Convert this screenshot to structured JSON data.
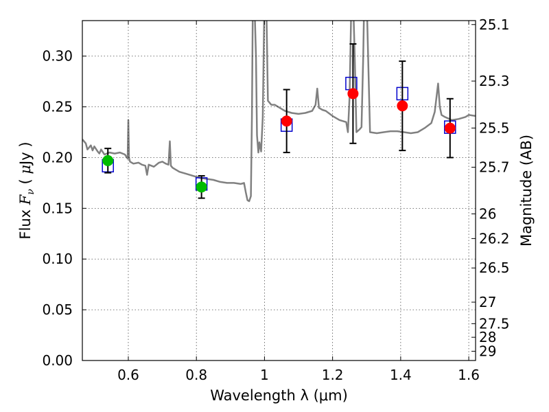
{
  "chart_data": {
    "type": "scatter",
    "title": "",
    "xlabel": "Wavelength  λ (μm)",
    "ylabel": "Flux  F_ν  ( μJy )",
    "ylabel_right": "Magnitude (AB)",
    "xlim": [
      0.465,
      1.62
    ],
    "ylim": [
      0.0,
      0.335
    ],
    "grid": true,
    "x_ticks": [
      0.6,
      0.8,
      1.0,
      1.2,
      1.4,
      1.6
    ],
    "x_tick_labels": [
      "0.6",
      "0.8",
      "1",
      "1.2",
      "1.4",
      "1.6"
    ],
    "y_ticks": [
      0.0,
      0.05,
      0.1,
      0.15,
      0.2,
      0.25,
      0.3
    ],
    "y_tick_labels": [
      "0.00",
      "0.05",
      "0.10",
      "0.15",
      "0.20",
      "0.25",
      "0.30"
    ],
    "right_axis_ticks": [
      {
        "label": "25.1",
        "flux": 0.3311
      },
      {
        "label": "25.3",
        "flux": 0.2754
      },
      {
        "label": "25.5",
        "flux": 0.2291
      },
      {
        "label": "25.7",
        "flux": 0.1905
      },
      {
        "label": "26",
        "flux": 0.1445
      },
      {
        "label": "26.2",
        "flux": 0.1202
      },
      {
        "label": "26.5",
        "flux": 0.0912
      },
      {
        "label": "27",
        "flux": 0.0575
      },
      {
        "label": "27.5",
        "flux": 0.0363
      },
      {
        "label": "28",
        "flux": 0.0229
      },
      {
        "label": "29",
        "flux": 0.0091
      }
    ],
    "series": [
      {
        "marker": "circle",
        "color": "#00bb00",
        "x": [
          0.54,
          0.815
        ],
        "y": [
          0.197,
          0.171
        ],
        "yerr": [
          0.012,
          0.011
        ]
      },
      {
        "marker": "circle",
        "color": "#ff0000",
        "x": [
          1.065,
          1.26,
          1.405,
          1.545
        ],
        "y": [
          0.236,
          0.263,
          0.251,
          0.229
        ],
        "yerr": [
          0.031,
          0.049,
          0.044,
          0.029
        ]
      },
      {
        "marker": "open-square",
        "color": "#0000cc",
        "x": [
          0.54,
          0.815,
          1.065,
          1.255,
          1.405,
          1.545
        ],
        "y": [
          0.192,
          0.174,
          0.232,
          0.273,
          0.263,
          0.23
        ]
      },
      {
        "marker": "line",
        "color": "#808080",
        "x": [
          0.465,
          0.475,
          0.48,
          0.49,
          0.495,
          0.5,
          0.51,
          0.515,
          0.52,
          0.53,
          0.545,
          0.56,
          0.575,
          0.59,
          0.598,
          0.6,
          0.602,
          0.605,
          0.615,
          0.63,
          0.64,
          0.65,
          0.655,
          0.66,
          0.675,
          0.69,
          0.7,
          0.71,
          0.718,
          0.722,
          0.725,
          0.73,
          0.75,
          0.77,
          0.79,
          0.81,
          0.83,
          0.85,
          0.87,
          0.89,
          0.91,
          0.93,
          0.94,
          0.945,
          0.95,
          0.955,
          0.96,
          0.963,
          0.966,
          0.97,
          0.975,
          0.978,
          0.982,
          0.985,
          0.99,
          0.995,
          1.0,
          1.005,
          1.01,
          1.02,
          1.03,
          1.04,
          1.05,
          1.06,
          1.08,
          1.1,
          1.12,
          1.14,
          1.15,
          1.155,
          1.16,
          1.17,
          1.18,
          1.2,
          1.22,
          1.24,
          1.245,
          1.25,
          1.255,
          1.26,
          1.265,
          1.27,
          1.28,
          1.285,
          1.29,
          1.293,
          1.3,
          1.31,
          1.33,
          1.35,
          1.37,
          1.39,
          1.41,
          1.43,
          1.45,
          1.47,
          1.49,
          1.5,
          1.51,
          1.515,
          1.52,
          1.53,
          1.55,
          1.57,
          1.59,
          1.6,
          1.62
        ],
        "y": [
          0.218,
          0.214,
          0.208,
          0.212,
          0.207,
          0.211,
          0.206,
          0.204,
          0.208,
          0.203,
          0.205,
          0.204,
          0.205,
          0.203,
          0.199,
          0.237,
          0.2,
          0.196,
          0.194,
          0.195,
          0.193,
          0.192,
          0.183,
          0.193,
          0.191,
          0.195,
          0.196,
          0.194,
          0.193,
          0.216,
          0.192,
          0.19,
          0.186,
          0.184,
          0.182,
          0.18,
          0.179,
          0.178,
          0.176,
          0.175,
          0.175,
          0.174,
          0.175,
          0.166,
          0.158,
          0.157,
          0.162,
          0.24,
          0.36,
          0.36,
          0.3,
          0.222,
          0.205,
          0.215,
          0.206,
          0.24,
          0.36,
          0.36,
          0.256,
          0.252,
          0.252,
          0.25,
          0.248,
          0.246,
          0.244,
          0.243,
          0.244,
          0.246,
          0.252,
          0.268,
          0.249,
          0.247,
          0.246,
          0.241,
          0.237,
          0.235,
          0.225,
          0.26,
          0.35,
          0.36,
          0.3,
          0.225,
          0.228,
          0.23,
          0.3,
          0.36,
          0.36,
          0.225,
          0.224,
          0.225,
          0.226,
          0.226,
          0.225,
          0.224,
          0.225,
          0.229,
          0.234,
          0.245,
          0.273,
          0.25,
          0.242,
          0.24,
          0.237,
          0.238,
          0.24,
          0.242,
          0.241
        ]
      }
    ]
  }
}
